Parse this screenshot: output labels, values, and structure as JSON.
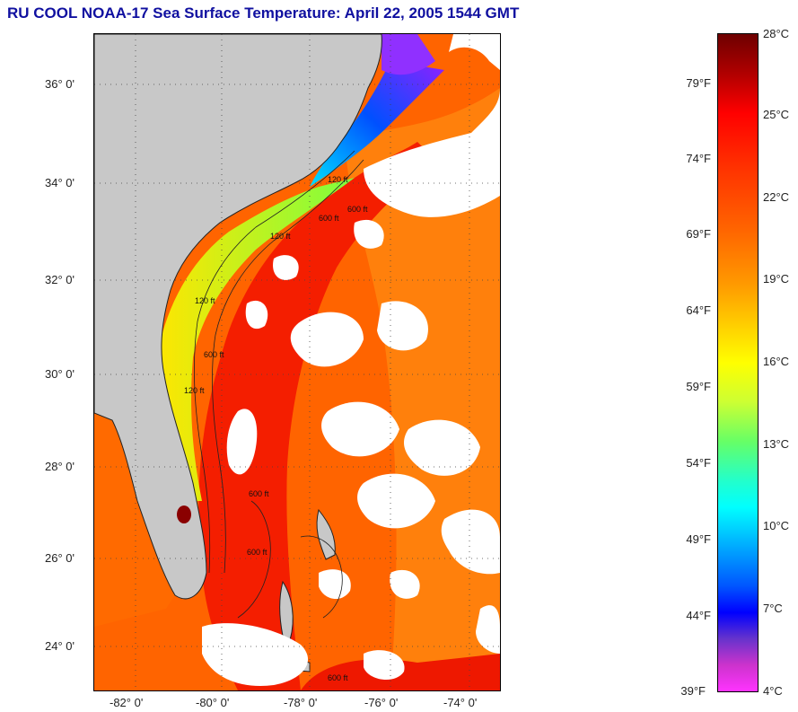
{
  "title": "RU COOL  NOAA-17  Sea Surface Temperature:  April 22, 2005 1544 GMT",
  "map": {
    "lat_labels": [
      "36° 0'",
      "34° 0'",
      "32° 0'",
      "30° 0'",
      "28° 0'",
      "26° 0'",
      "24° 0'"
    ],
    "lon_labels": [
      "-82° 0'",
      "-80° 0'",
      "-78° 0'",
      "-76° 0'",
      "-74° 0'"
    ],
    "contour_labels": [
      "120 ft",
      "600 ft",
      "120 ft",
      "600 ft",
      "120 ft",
      "600 ft",
      "120 ft",
      "600 ft",
      "600 ft",
      "600 ft"
    ],
    "colors": {
      "land": "#c8c8c8",
      "cloud": "#ffffff",
      "gulfstream": "#f01e00",
      "offshore": "#ff6a00",
      "cold": "#0030ff"
    }
  },
  "colorbar": {
    "fahrenheit": [
      "79°F",
      "74°F",
      "69°F",
      "64°F",
      "59°F",
      "54°F",
      "49°F",
      "44°F",
      "39°F"
    ],
    "celsius": [
      "28°C",
      "25°C",
      "22°C",
      "19°C",
      "16°C",
      "13°C",
      "10°C",
      "7°C",
      "4°C"
    ]
  }
}
